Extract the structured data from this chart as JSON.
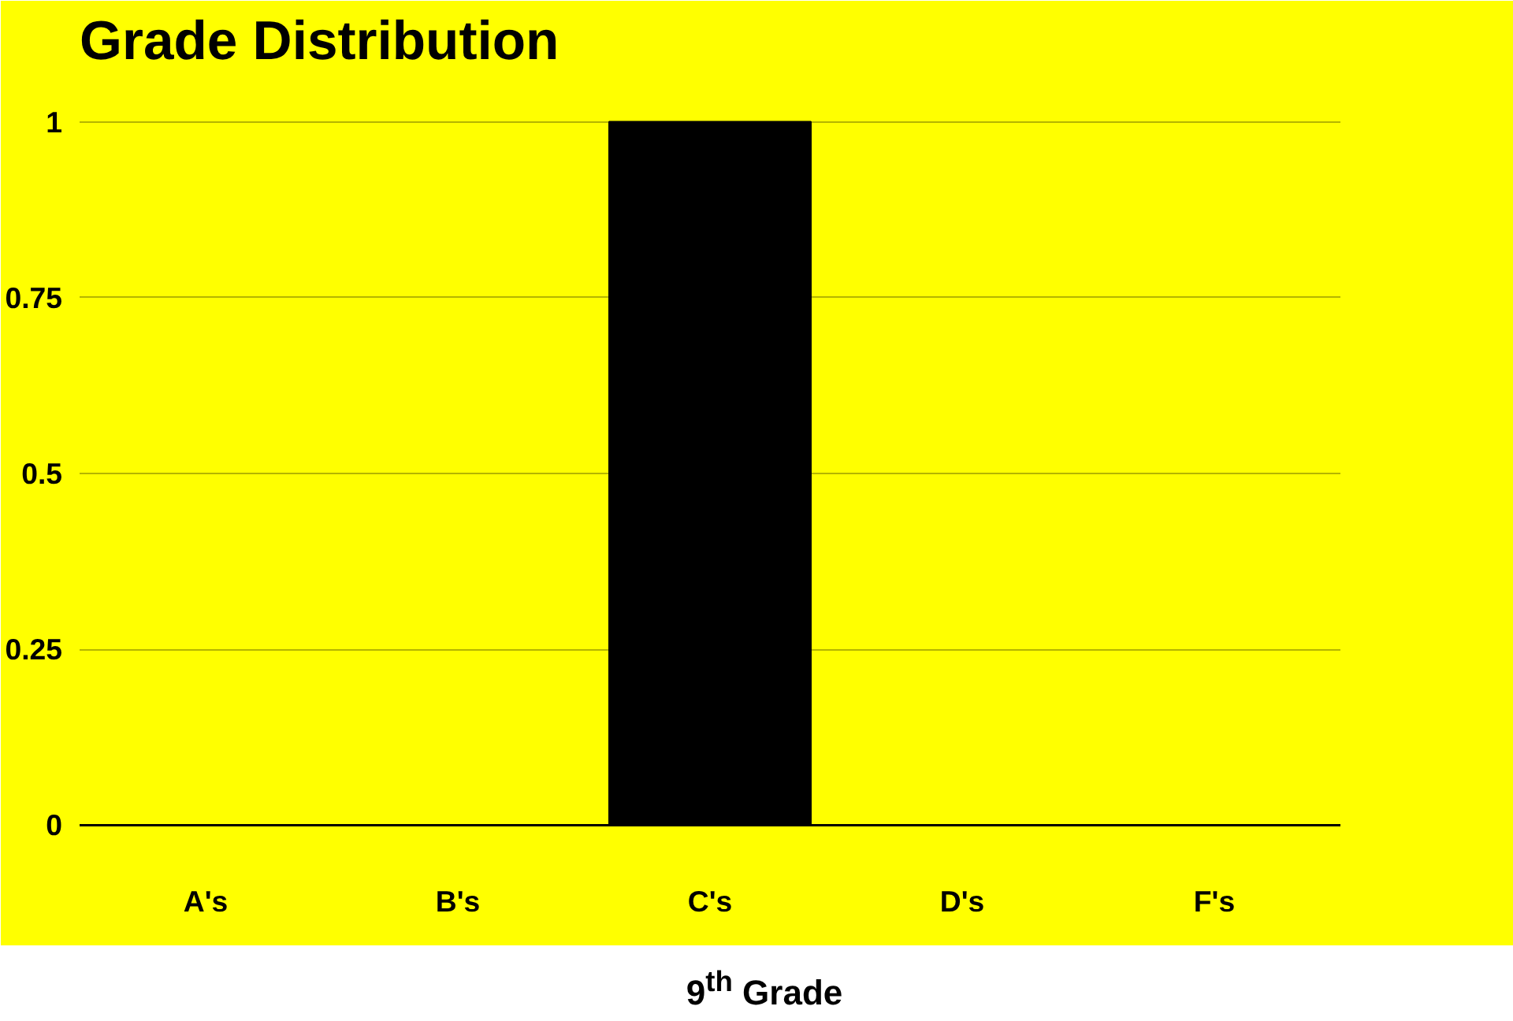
{
  "chart_data": {
    "type": "bar",
    "title": "Grade Distribution",
    "categories": [
      "A's",
      "B's",
      "C's",
      "D's",
      "F's"
    ],
    "series": [
      {
        "color": "#000000",
        "values": [
          0,
          0,
          1,
          0,
          0
        ]
      }
    ],
    "ylim": [
      0,
      1
    ],
    "yticks": [
      0,
      0.25,
      0.5,
      0.75,
      1
    ],
    "grid": "y",
    "annotations": [
      "9$^{th}$ Grade"
    ]
  }
}
